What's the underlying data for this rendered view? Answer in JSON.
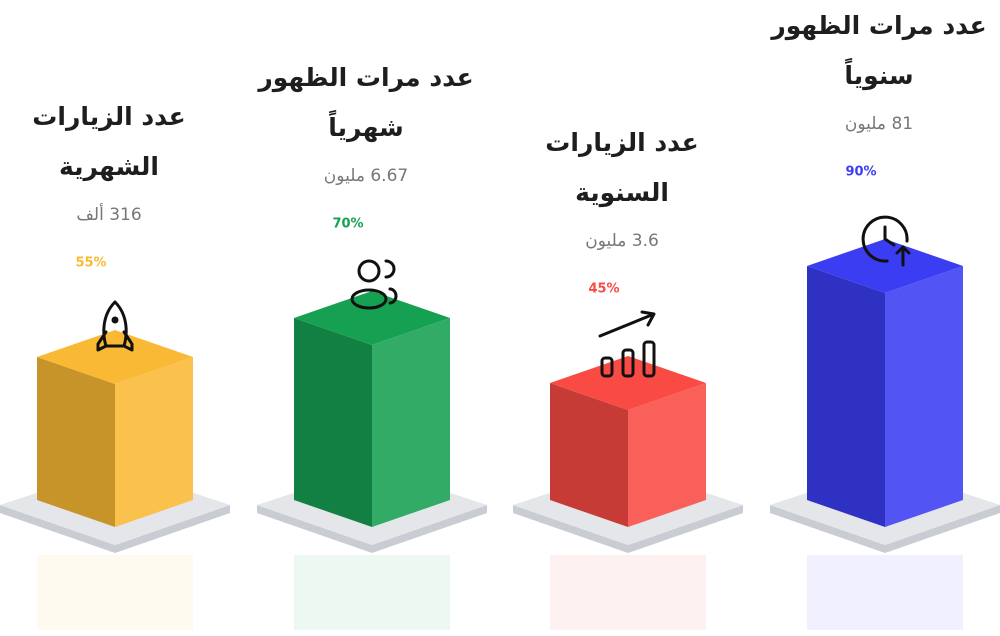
{
  "chart_data": {
    "type": "bar3d",
    "categories": [
      [
        "عدد الزيارات",
        "الشهرية"
      ],
      [
        "عدد مرات الظهور",
        "شهرياً"
      ],
      [
        "عدد الزيارات",
        "السنوية"
      ],
      [
        "عدد مرات الظهور",
        "سنوياً"
      ]
    ],
    "subtitles": [
      "316 ألف",
      "6.67 مليون",
      "3.6 مليون",
      "81 مليون"
    ],
    "values": [
      55,
      70,
      45,
      90
    ],
    "value_labels": [
      "55%",
      "70%",
      "45%",
      "90%"
    ],
    "colors": [
      "#f9b934",
      "#16a052",
      "#f94a44",
      "#3b3df2"
    ]
  }
}
